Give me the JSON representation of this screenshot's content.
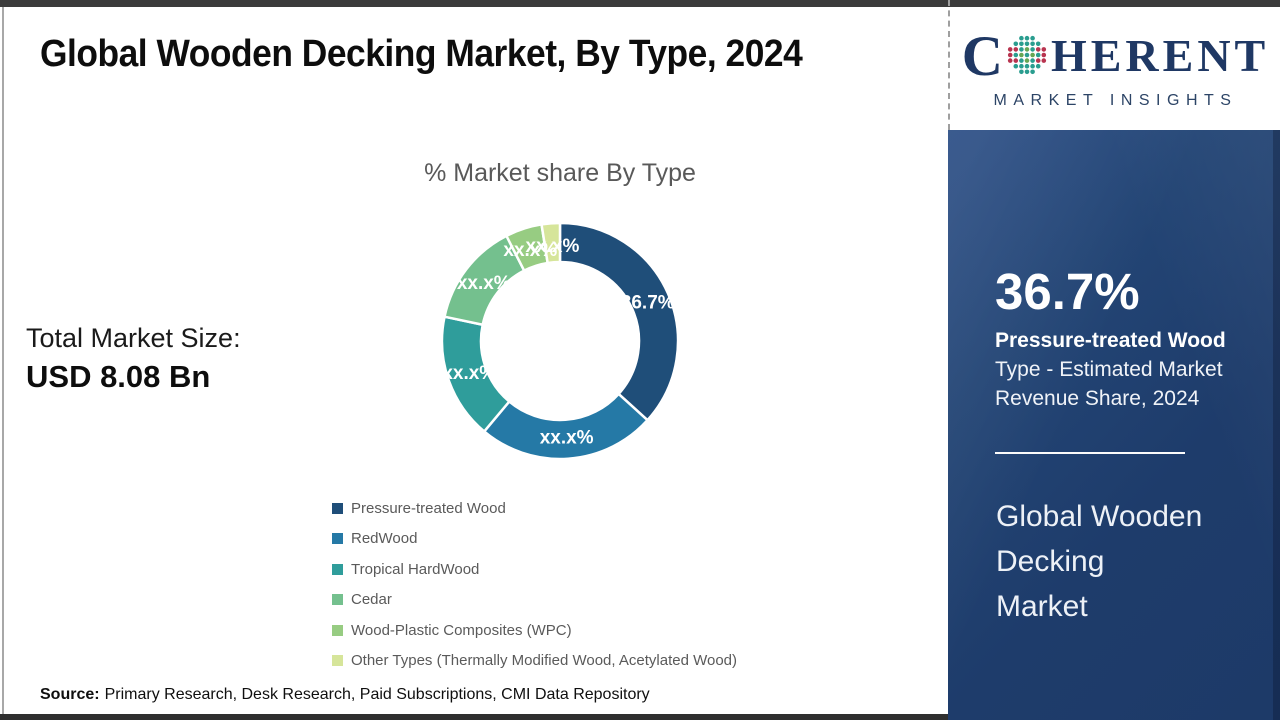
{
  "header": {
    "title": "Global Wooden Decking Market, By Type, 2024"
  },
  "logo": {
    "word_start": "C",
    "word_end": "HERENT",
    "tagline": "MARKET INSIGHTS",
    "navy": "#1F3864",
    "teal": "#2A9D8F",
    "green": "#67A653",
    "red": "#B8344F"
  },
  "left_stats": {
    "label": "Total Market Size:",
    "value": "USD 8.08 Bn"
  },
  "chart_data": {
    "type": "pie",
    "donut": true,
    "title": "% Market share By Type",
    "categories": [
      "Pressure-treated Wood",
      "RedWood",
      "Tropical HardWood",
      "Cedar",
      "Wood-Plastic Composites (WPC)",
      "Other Types (Thermally Modified Wood, Acetylated Wood)"
    ],
    "values": [
      36.7,
      24.4,
      17.2,
      14.2,
      5.0,
      2.5
    ],
    "labels": [
      "36.7%",
      "xx.x%",
      "xx.x%",
      "xx.x%",
      "xx.x%",
      "xx.x%"
    ],
    "colors": [
      "#1F4E79",
      "#2579A6",
      "#2F9D9B",
      "#74C08E",
      "#97CC82",
      "#D6E59A"
    ],
    "legend_position": "bottom-left"
  },
  "sidebar": {
    "panel_color": "#1F3E6E",
    "stat_value": "36.7%",
    "stat_caption_bold": "Pressure-treated Wood",
    "stat_caption_lines": [
      "Type - Estimated Market",
      "Revenue Share, 2024"
    ],
    "market_name_lines": [
      "Global Wooden",
      "Decking",
      "Market"
    ]
  },
  "footer": {
    "source_label": "Source:",
    "source_text": "Primary Research, Desk Research, Paid Subscriptions, CMI Data Repository"
  }
}
